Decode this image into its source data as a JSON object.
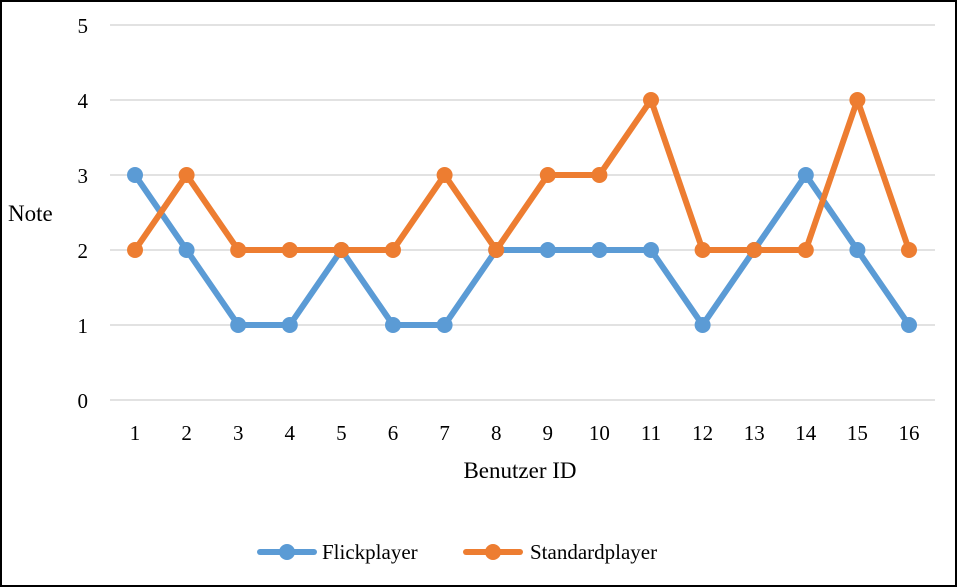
{
  "chart_data": {
    "type": "line",
    "title": "",
    "xlabel": "Benutzer ID",
    "ylabel": "Note",
    "categories": [
      "1",
      "2",
      "3",
      "4",
      "5",
      "6",
      "7",
      "8",
      "9",
      "10",
      "11",
      "12",
      "13",
      "14",
      "15",
      "16"
    ],
    "ylim": [
      0,
      5
    ],
    "yticks": [
      "0",
      "1",
      "2",
      "3",
      "4",
      "5"
    ],
    "grid": true,
    "legend_position": "bottom",
    "series": [
      {
        "name": "Flickplayer",
        "color": "#5b9bd5",
        "values": [
          3,
          2,
          1,
          1,
          2,
          1,
          1,
          2,
          2,
          2,
          2,
          1,
          2,
          3,
          2,
          1
        ]
      },
      {
        "name": "Standardplayer",
        "color": "#ed7d31",
        "values": [
          2,
          3,
          2,
          2,
          2,
          2,
          3,
          2,
          3,
          3,
          4,
          2,
          2,
          2,
          4,
          2
        ]
      }
    ]
  }
}
